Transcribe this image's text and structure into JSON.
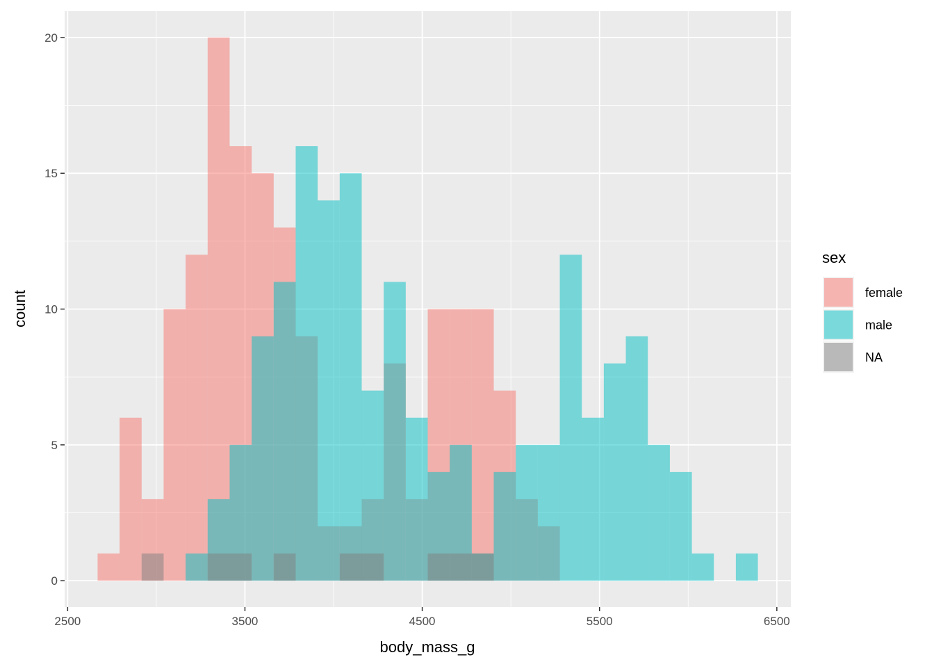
{
  "chart_data": {
    "type": "histogram",
    "x_label": "body_mass_g",
    "y_label": "count",
    "legend_title": "sex",
    "legend_position": "right",
    "grid": true,
    "background": "#ebebeb",
    "opacity": 0.5,
    "bins": [
      2669.0,
      2793.1,
      2917.2,
      3041.4,
      3165.5,
      3289.7,
      3413.8,
      3537.9,
      3662.1,
      3786.2,
      3910.3,
      4034.5,
      4158.6,
      4282.8,
      4406.9,
      4531.0,
      4655.2,
      4779.3,
      4903.4,
      5027.6,
      5151.7,
      5275.9,
      5400.0,
      5524.1,
      5648.3,
      5772.4,
      5896.6,
      6020.7,
      6144.8,
      6269.0,
      6393.1
    ],
    "series": [
      {
        "name": "female",
        "color": "#F8766D",
        "values": [
          1,
          6,
          3,
          10,
          12,
          20,
          16,
          15,
          13,
          9,
          2,
          2,
          3,
          8,
          3,
          10,
          10,
          10,
          7,
          3,
          2,
          0,
          0,
          0,
          0,
          0,
          0,
          0,
          0,
          0
        ]
      },
      {
        "name": "male",
        "color": "#00BFC4",
        "values": [
          0,
          0,
          0,
          0,
          1,
          3,
          5,
          9,
          11,
          16,
          14,
          15,
          7,
          11,
          6,
          4,
          5,
          1,
          4,
          5,
          5,
          12,
          6,
          8,
          9,
          5,
          4,
          1,
          0,
          1
        ]
      },
      {
        "name": "NA",
        "color": "#7f7f7f",
        "values": [
          0,
          0,
          1,
          0,
          0,
          1,
          1,
          0,
          1,
          0,
          0,
          1,
          1,
          0,
          0,
          1,
          1,
          1,
          0,
          0,
          0,
          0,
          0,
          0,
          0,
          0,
          0,
          0,
          0,
          0
        ]
      }
    ],
    "xlim": [
      2483,
      6579
    ],
    "ylim": [
      -0.97,
      20.97
    ],
    "xticks": [
      2500,
      3500,
      4500,
      5500,
      6500
    ],
    "yticks": [
      0,
      5,
      10,
      15,
      20
    ]
  }
}
